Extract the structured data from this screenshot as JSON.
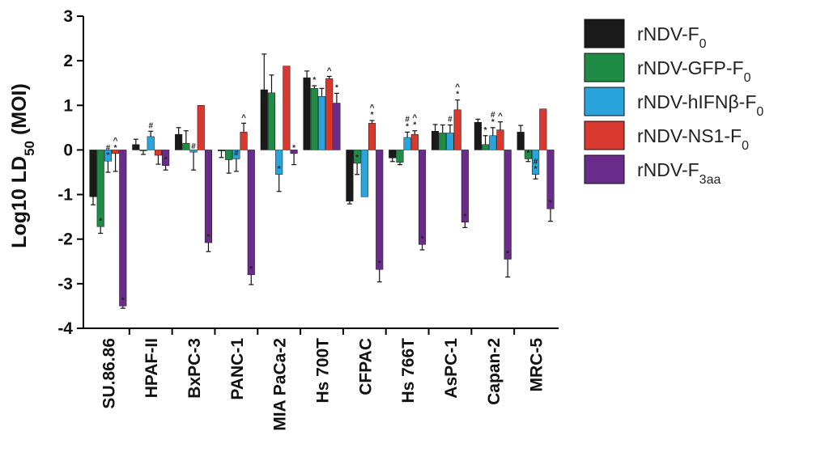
{
  "chart_data": {
    "type": "bar",
    "title": "",
    "xlabel": "",
    "ylabel": {
      "main": "Log10 LD",
      "sub": "50",
      "suffix": " (MOI)"
    },
    "ylim": [
      -4,
      3
    ],
    "yticks": [
      "3",
      "2",
      "1",
      "0",
      "-1",
      "-2",
      "-3",
      "-4"
    ],
    "ytick_values": [
      3,
      2,
      1,
      0,
      -1,
      -2,
      -3,
      -4
    ],
    "grid": false,
    "legend_position": "top-right",
    "categories": [
      "SU.86.86",
      "HPAF-II",
      "BxPC-3",
      "PANC-1",
      "MIA PaCa-2",
      "Hs 700T",
      "CFPAC",
      "Hs 766T",
      "AsPC-1",
      "Capan-2",
      "MRC-5"
    ],
    "series": [
      {
        "name": "rNDV-F",
        "sub": "0",
        "color": "#1a1a1a",
        "values": [
          -1.05,
          0.12,
          0.35,
          -0.02,
          1.35,
          1.62,
          -1.15,
          -0.18,
          0.42,
          0.62,
          0.4
        ],
        "errors": [
          0.18,
          0.12,
          0.15,
          0.15,
          0.8,
          0.15,
          0.06,
          0.08,
          0.15,
          0.07,
          0.15
        ],
        "marks": [
          "",
          "",
          "",
          "",
          "",
          "",
          "",
          "",
          "",
          "",
          ""
        ]
      },
      {
        "name": "rNDV-GFP-F",
        "sub": "0",
        "color": "#1e8c45",
        "values": [
          -1.72,
          -0.02,
          0.15,
          -0.22,
          1.28,
          1.38,
          -0.3,
          -0.28,
          0.38,
          0.12,
          -0.2
        ],
        "errors": [
          0.15,
          0.08,
          0.28,
          0.3,
          0.4,
          0.06,
          0.25,
          0.05,
          0.18,
          0.2,
          0.06
        ],
        "marks": [
          "*",
          "",
          "",
          "",
          "",
          "*",
          "*",
          "",
          "",
          "*",
          "*"
        ]
      },
      {
        "name": "rNDV-hIFNβ-F",
        "sub": "0",
        "color": "#2aa4dc",
        "values": [
          -0.25,
          0.3,
          -0.05,
          -0.2,
          -0.55,
          1.2,
          -1.05,
          0.28,
          0.38,
          0.32,
          -0.55
        ],
        "errors": [
          0.25,
          0.12,
          0.4,
          0.28,
          0.38,
          0.18,
          0.0,
          0.12,
          0.18,
          0.18,
          0.1
        ],
        "marks": [
          "#\n*",
          "#",
          "#",
          "#",
          "*",
          "",
          "",
          "#\n*",
          "#",
          "#\n*",
          "#\n*"
        ]
      },
      {
        "name": "rNDV-NS1-F",
        "sub": "0",
        "color": "#d9382e",
        "values": [
          -0.08,
          -0.12,
          1.0,
          0.4,
          1.88,
          1.6,
          0.6,
          0.35,
          0.9,
          0.45,
          0.92
        ],
        "errors": [
          0.4,
          0.2,
          0.0,
          0.2,
          0.0,
          0.05,
          0.06,
          0.08,
          0.22,
          0.18,
          0.0
        ],
        "marks": [
          "^\n*",
          "",
          "",
          "^",
          "",
          "^",
          "^\n*",
          "^\n*",
          "^\n*",
          "^",
          ""
        ]
      },
      {
        "name": "rNDV-F",
        "sub": "3aa",
        "color": "#6a2c8a",
        "values": [
          -3.5,
          -0.35,
          -2.08,
          -2.8,
          -0.08,
          1.05,
          -2.68,
          -2.12,
          -1.62,
          -2.45,
          -1.32
        ],
        "errors": [
          0.05,
          0.1,
          0.2,
          0.22,
          0.25,
          0.22,
          0.28,
          0.12,
          0.12,
          0.4,
          0.28
        ],
        "marks": [
          "*",
          "*",
          "*",
          "*",
          "*",
          "*",
          "*",
          "*",
          "*",
          "*",
          "*"
        ]
      }
    ]
  }
}
